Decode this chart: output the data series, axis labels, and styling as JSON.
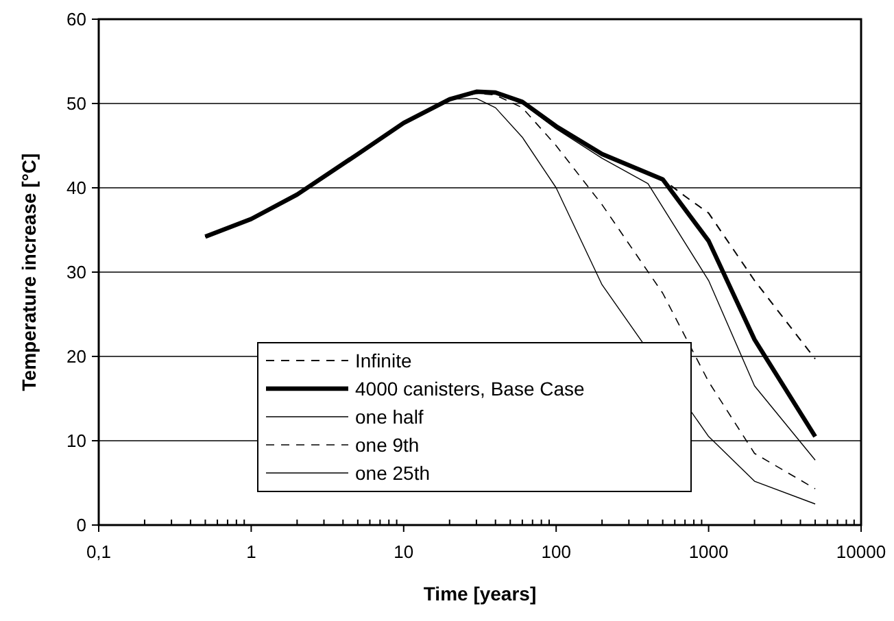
{
  "chart_data": {
    "type": "line",
    "xlabel": "Time [years]",
    "ylabel": "Temperature increase [°C]",
    "log": "x",
    "xlim": [
      0.1,
      10000
    ],
    "xticks": [
      {
        "value": 0.1,
        "label": "0,1"
      },
      1,
      10,
      100,
      1000,
      10000
    ],
    "ylim": [
      0,
      60
    ],
    "yticks": [
      0,
      10,
      20,
      30,
      40,
      50,
      60
    ],
    "grid": "y",
    "legend": "bottom left",
    "marker": "none",
    "series": [
      {
        "name": "Infinite",
        "color": "#000000",
        "line_style": "dashed",
        "x": [
          0.5,
          1,
          2,
          5,
          10,
          20,
          30,
          40,
          60,
          100,
          200,
          500,
          700,
          1000,
          2000,
          5000
        ],
        "values": [
          34.2,
          36.3,
          39.2,
          44,
          47.7,
          50.5,
          51.4,
          51.3,
          50.2,
          47.3,
          44,
          41,
          39,
          37,
          29,
          19.7
        ]
      },
      {
        "name": "4000 canisters, Base Case",
        "color": "#000000",
        "line_style": "solid",
        "x": [
          0.5,
          1,
          2,
          5,
          10,
          20,
          30,
          40,
          60,
          100,
          200,
          500,
          1000,
          2000,
          5000
        ],
        "values": [
          34.2,
          36.3,
          39.2,
          44,
          47.7,
          50.5,
          51.4,
          51.3,
          50.2,
          47.3,
          44,
          41,
          33.7,
          22,
          10.5
        ]
      },
      {
        "name": "one half",
        "color": "#000000",
        "line_style": "solid",
        "x": [
          0.5,
          1,
          2,
          5,
          10,
          20,
          30,
          40,
          60,
          100,
          200,
          400,
          1000,
          2000,
          5000
        ],
        "values": [
          34.2,
          36.3,
          39.2,
          44,
          47.7,
          50.5,
          51.3,
          51.2,
          50,
          47,
          43.5,
          40.5,
          29,
          16.5,
          7.7
        ]
      },
      {
        "name": "one 9th",
        "color": "#000000",
        "line_style": "dashed",
        "x": [
          0.5,
          1,
          2,
          5,
          10,
          20,
          30,
          40,
          60,
          100,
          200,
          500,
          1000,
          2000,
          5000
        ],
        "values": [
          34.2,
          36.3,
          39.2,
          44,
          47.7,
          50.5,
          51.2,
          51,
          49.5,
          45,
          38,
          27.5,
          17,
          8.5,
          4.3
        ]
      },
      {
        "name": "one 25th",
        "color": "#000000",
        "line_style": "solid",
        "x": [
          0.5,
          1,
          2,
          5,
          10,
          20,
          30,
          40,
          60,
          100,
          200,
          1000,
          2000,
          5000
        ],
        "values": [
          34.2,
          36.3,
          39.2,
          44,
          47.7,
          50.5,
          50.6,
          49.5,
          46,
          40,
          28.5,
          10.5,
          5.2,
          2.5
        ]
      }
    ]
  }
}
